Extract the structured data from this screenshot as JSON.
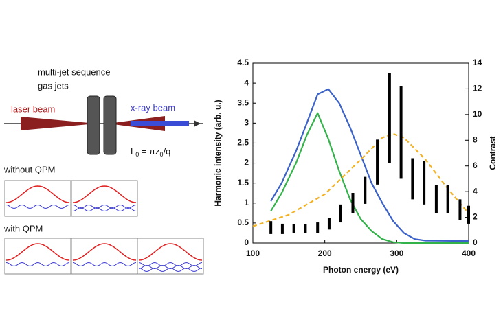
{
  "diagram": {
    "labels": [
      "multi-jet sequence",
      "gas jets",
      "laser beam",
      "x-ray beam",
      "without QPM",
      "with QPM"
    ],
    "formula": [
      "L",
      "0",
      " = πz",
      "0",
      "/q"
    ]
  },
  "chart_data": {
    "type": "line",
    "xlabel": "Photon energy (eV)",
    "ylabel": "Harmonic intensity (arb. u.)",
    "y2label": "Contrast",
    "xlim": [
      100,
      400
    ],
    "xticks": [
      100,
      200,
      300,
      400
    ],
    "ylim": [
      0,
      4.5
    ],
    "yticks": [
      0,
      0.5,
      1,
      1.5,
      2,
      2.5,
      3,
      3.5,
      4,
      4.5
    ],
    "y2lim": [
      0,
      14
    ],
    "y2ticks": [
      0,
      2,
      4,
      6,
      8,
      10,
      12,
      14
    ],
    "series": [
      {
        "color": "#3a62c9",
        "x": [
          125,
          140,
          160,
          175,
          190,
          205,
          220,
          235,
          250,
          265,
          280,
          295,
          310,
          325,
          340,
          400
        ],
        "values": [
          1.05,
          1.5,
          2.3,
          3.0,
          3.72,
          3.85,
          3.5,
          2.9,
          2.2,
          1.5,
          1.0,
          0.55,
          0.25,
          0.1,
          0.06,
          0.05
        ]
      },
      {
        "color": "#33b24a",
        "x": [
          125,
          140,
          160,
          175,
          190,
          205,
          220,
          235,
          250,
          265,
          280,
          295,
          310,
          400
        ],
        "values": [
          0.8,
          1.25,
          2.0,
          2.7,
          3.25,
          2.6,
          1.8,
          1.1,
          0.6,
          0.3,
          0.1,
          0.02,
          0,
          0
        ]
      },
      {
        "color": "#f2b226",
        "axis": "y2",
        "dashed": true,
        "x": [
          100,
          150,
          200,
          250,
          280,
          295,
          310,
          340,
          370,
          400
        ],
        "values": [
          1.3,
          2.2,
          3.8,
          6.5,
          8.2,
          8.5,
          8.2,
          6.5,
          4.3,
          2.3
        ]
      },
      {
        "color": "#000000",
        "axis": "y2",
        "style": "errorbar",
        "x": [
          125,
          141,
          157,
          173,
          190,
          206,
          222,
          239,
          256,
          273,
          290,
          306,
          322,
          338,
          355,
          371,
          388,
          400
        ],
        "values": [
          1.2,
          1.1,
          1.1,
          1.1,
          1.2,
          1.5,
          2.3,
          3.1,
          4.1,
          6.3,
          9.7,
          8.6,
          5.0,
          4.7,
          3.4,
          3.4,
          2.6,
          2.2
        ],
        "errors": [
          0.5,
          0.4,
          0.35,
          0.35,
          0.4,
          0.45,
          0.7,
          0.8,
          1.05,
          1.75,
          3.5,
          3.6,
          1.6,
          1.7,
          1.1,
          1.1,
          0.8,
          0.7
        ]
      }
    ]
  }
}
